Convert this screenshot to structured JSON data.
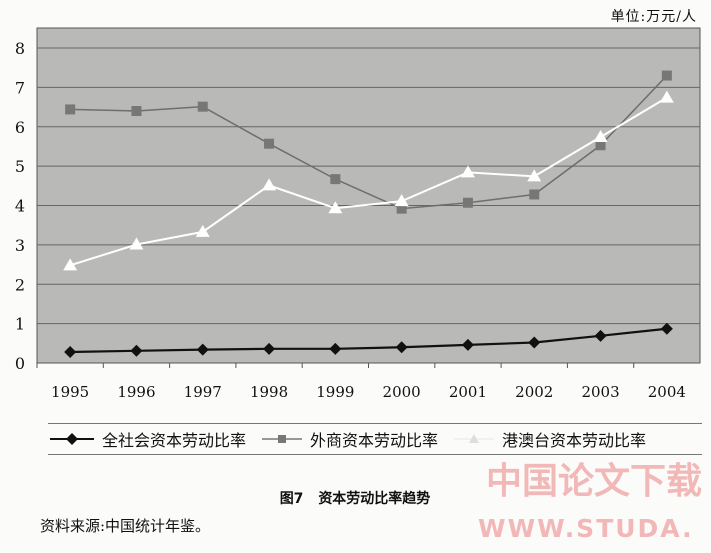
{
  "unit_label": "单位:万元/人",
  "caption": {
    "figure_no": "图7",
    "title": "资本劳动比率趋势"
  },
  "source": "资料来源:中国统计年鉴。",
  "watermark": {
    "line1": "中国论文下载",
    "line2": "WWW.STUDA."
  },
  "chart_data": {
    "type": "line",
    "title": "资本劳动比率趋势",
    "xlabel": "",
    "ylabel": "",
    "unit": "单位:万元/人",
    "categories": [
      "1995",
      "1996",
      "1997",
      "1998",
      "1999",
      "2000",
      "2001",
      "2002",
      "2003",
      "2004"
    ],
    "y_ticks": [
      "0",
      "1",
      "2",
      "3",
      "4",
      "5",
      "6",
      "7",
      "8"
    ],
    "ylim": [
      0,
      8
    ],
    "grid": true,
    "legend_position": "bottom",
    "series": [
      {
        "name": "全社会资本劳动比率",
        "marker": "diamond",
        "color": "#111111",
        "values": [
          0.28,
          0.31,
          0.34,
          0.36,
          0.36,
          0.4,
          0.46,
          0.52,
          0.69,
          0.87
        ]
      },
      {
        "name": "外商资本劳动比率",
        "marker": "square",
        "color": "#6e6e6e",
        "values": [
          6.44,
          6.4,
          6.51,
          5.57,
          4.67,
          3.92,
          4.07,
          4.28,
          5.53,
          7.3
        ]
      },
      {
        "name": "港澳台资本劳动比率",
        "marker": "triangle",
        "color": "#ffffff",
        "values": [
          2.48,
          3.01,
          3.33,
          4.51,
          3.93,
          4.11,
          4.84,
          4.74,
          5.74,
          6.74
        ]
      }
    ]
  }
}
